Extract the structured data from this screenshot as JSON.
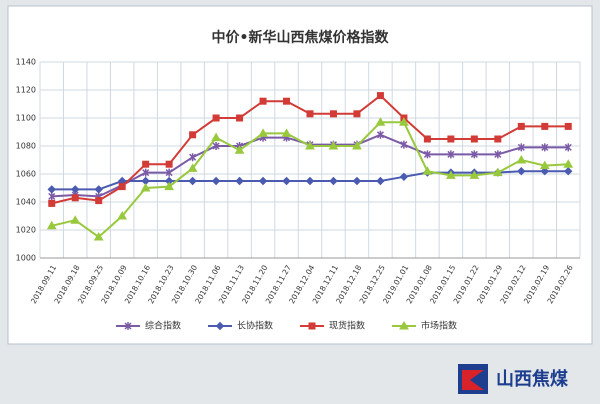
{
  "chart_data": {
    "type": "line",
    "title": "中价•新华山西焦煤价格指数",
    "categories": [
      "2018.09.11",
      "2018.09.18",
      "2018.09.25",
      "2018.10.09",
      "2018.10.16",
      "2018.10.23",
      "2018.10.30",
      "2018.11.06",
      "2018.11.13",
      "2018.11.20",
      "2018.11.27",
      "2018.12.04",
      "2018.12.11",
      "2018.12.18",
      "2018.12.25",
      "2019.01.01",
      "2019.01.08",
      "2019.01.15",
      "2019.01.22",
      "2019.01.29",
      "2019.02.12",
      "2019.02.19",
      "2019.02.26"
    ],
    "series": [
      {
        "name": "综合指数",
        "color": "#7b5aa6",
        "marker": "cross",
        "values": [
          1044,
          1045,
          1044,
          1052,
          1061,
          1061,
          1072,
          1080,
          1080,
          1086,
          1086,
          1081,
          1081,
          1081,
          1088,
          1081,
          1074,
          1074,
          1074,
          1074,
          1079,
          1079,
          1079
        ]
      },
      {
        "name": "长协指数",
        "color": "#4a5bb0",
        "marker": "diamond",
        "values": [
          1049,
          1049,
          1049,
          1055,
          1055,
          1055,
          1055,
          1055,
          1055,
          1055,
          1055,
          1055,
          1055,
          1055,
          1055,
          1058,
          1061,
          1061,
          1061,
          1061,
          1062,
          1062,
          1062
        ]
      },
      {
        "name": "现货指数",
        "color": "#d23b36",
        "marker": "square",
        "values": [
          1039,
          1043,
          1041,
          1051,
          1067,
          1067,
          1088,
          1100,
          1100,
          1112,
          1112,
          1103,
          1103,
          1103,
          1116,
          1100,
          1085,
          1085,
          1085,
          1085,
          1094,
          1094,
          1094
        ]
      },
      {
        "name": "市场指数",
        "color": "#98c83c",
        "marker": "triangle",
        "values": [
          1023,
          1027,
          1015,
          1030,
          1050,
          1051,
          1064,
          1086,
          1077,
          1089,
          1089,
          1080,
          1080,
          1080,
          1097,
          1097,
          1062,
          1059,
          1059,
          1061,
          1070,
          1066,
          1067
        ]
      }
    ],
    "ylim": [
      1000,
      1140
    ],
    "yticks": [
      1000,
      1020,
      1040,
      1060,
      1080,
      1100,
      1120,
      1140
    ],
    "grid": true,
    "legend": "bottom"
  },
  "logo": {
    "text": "山西焦煤"
  }
}
